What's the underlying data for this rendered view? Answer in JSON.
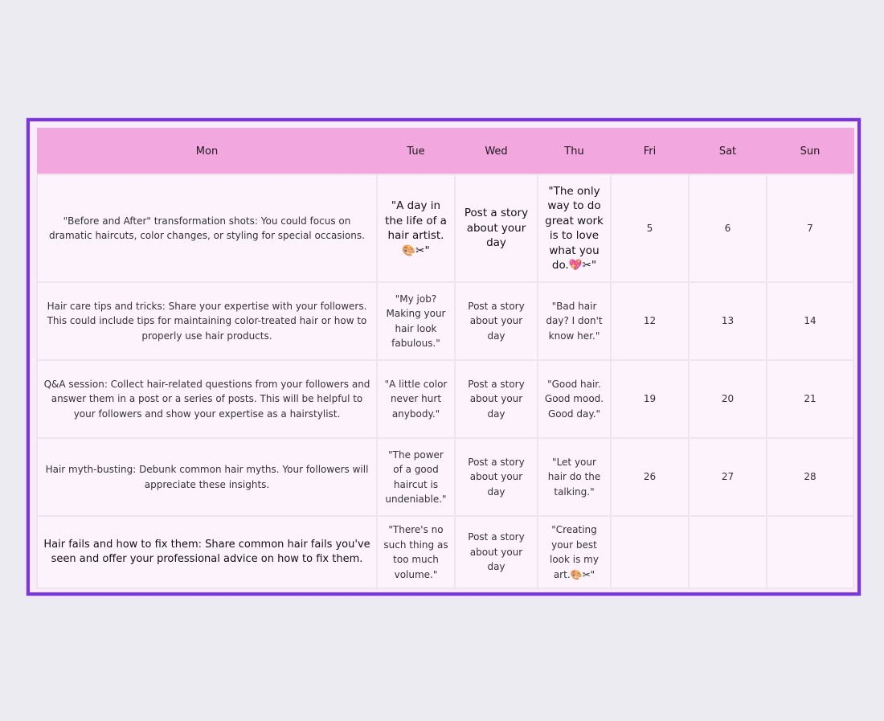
{
  "days": [
    "Mon",
    "Tue",
    "Wed",
    "Thu",
    "Fri",
    "Sat",
    "Sun"
  ],
  "rows": [
    {
      "mon": "\"Before and After\" transformation shots: You could focus on dramatic haircuts, color changes, or styling for special occasions.",
      "tue": "\"A day in the life of a hair artist.🎨✂\"",
      "wed": "Post a story about your day",
      "thu": "\"The only way to do great work is to love what you do.💖✂\"",
      "fri": "5",
      "sat": "6",
      "sun": "7"
    },
    {
      "mon": "Hair care tips and tricks: Share your expertise with your followers. This could include tips for maintaining color-treated hair or how to properly use hair products.",
      "tue": "\"My job? Making your hair look fabulous.\"",
      "wed": "Post a story about your day",
      "thu": "\"Bad hair day? I don't know her.\"",
      "fri": "12",
      "sat": "13",
      "sun": "14"
    },
    {
      "mon": "Q&A session: Collect hair-related questions from your followers and answer them in a post or a series of posts. This will be helpful to your followers and show your expertise as a hairstylist.",
      "tue": "\"A little color never hurt anybody.\"",
      "wed": "Post a story about your day",
      "thu": "\"Good hair. Good mood. Good day.\"",
      "fri": "19",
      "sat": "20",
      "sun": "21"
    },
    {
      "mon": "Hair myth-busting: Debunk common hair myths. Your followers will appreciate these insights.",
      "tue": "\"The power of a good haircut is undeniable.\"",
      "wed": "Post a story about your day",
      "thu": "\"Let your hair do the talking.\"",
      "fri": "26",
      "sat": "27",
      "sun": "28"
    },
    {
      "mon": "Hair fails and how to fix them: Share common hair fails you've seen and offer your professional advice on how to fix them.",
      "tue": "\"There's no such thing as too much volume.\"",
      "wed": "Post a story about your day",
      "thu": "\"Creating your best look is my art.🎨✂\"",
      "fri": "",
      "sat": "",
      "sun": ""
    }
  ],
  "colors": {
    "frame_border": "#7b2ff7",
    "header_bg": "#f3a7df",
    "cell_bg": "#fdf3fd",
    "page_bg": "#ecebf1"
  }
}
